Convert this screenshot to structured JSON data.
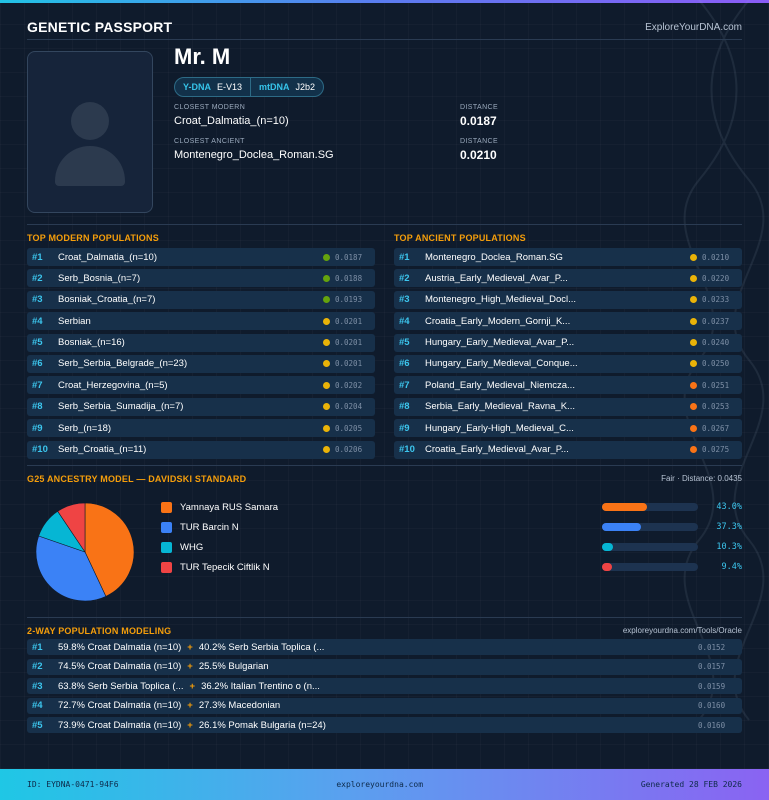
{
  "header": {
    "title": "GENETIC PASSPORT",
    "site": "ExploreYourDNA.com"
  },
  "profile": {
    "name": "Mr. M",
    "ydna_label": "Y-DNA",
    "ydna_value": "E-V13",
    "mtdna_label": "mtDNA",
    "mtdna_value": "J2b2",
    "closest_modern_label": "CLOSEST MODERN",
    "closest_modern": "Croat_Dalmatia_(n=10)",
    "modern_distance_label": "DISTANCE",
    "modern_distance": "0.0187",
    "closest_ancient_label": "CLOSEST ANCIENT",
    "closest_ancient": "Montenegro_Doclea_Roman.SG",
    "ancient_distance_label": "DISTANCE",
    "ancient_distance": "0.0210"
  },
  "modern": {
    "title": "TOP MODERN POPULATIONS",
    "rows": [
      {
        "rank": "#1",
        "name": "Croat_Dalmatia_(n=10)",
        "dist": "0.0187",
        "color": "#65a30d"
      },
      {
        "rank": "#2",
        "name": "Serb_Bosnia_(n=7)",
        "dist": "0.0188",
        "color": "#65a30d"
      },
      {
        "rank": "#3",
        "name": "Bosniak_Croatia_(n=7)",
        "dist": "0.0193",
        "color": "#65a30d"
      },
      {
        "rank": "#4",
        "name": "Serbian",
        "dist": "0.0201",
        "color": "#eab308"
      },
      {
        "rank": "#5",
        "name": "Bosniak_(n=16)",
        "dist": "0.0201",
        "color": "#eab308"
      },
      {
        "rank": "#6",
        "name": "Serb_Serbia_Belgrade_(n=23)",
        "dist": "0.0201",
        "color": "#eab308"
      },
      {
        "rank": "#7",
        "name": "Croat_Herzegovina_(n=5)",
        "dist": "0.0202",
        "color": "#eab308"
      },
      {
        "rank": "#8",
        "name": "Serb_Serbia_Sumadija_(n=7)",
        "dist": "0.0204",
        "color": "#eab308"
      },
      {
        "rank": "#9",
        "name": "Serb_(n=18)",
        "dist": "0.0205",
        "color": "#eab308"
      },
      {
        "rank": "#10",
        "name": "Serb_Croatia_(n=11)",
        "dist": "0.0206",
        "color": "#eab308"
      }
    ]
  },
  "ancient": {
    "title": "TOP ANCIENT POPULATIONS",
    "rows": [
      {
        "rank": "#1",
        "name": "Montenegro_Doclea_Roman.SG",
        "dist": "0.0210",
        "color": "#eab308"
      },
      {
        "rank": "#2",
        "name": "Austria_Early_Medieval_Avar_P...",
        "dist": "0.0220",
        "color": "#eab308"
      },
      {
        "rank": "#3",
        "name": "Montenegro_High_Medieval_Docl...",
        "dist": "0.0233",
        "color": "#eab308"
      },
      {
        "rank": "#4",
        "name": "Croatia_Early_Modern_Gornji_K...",
        "dist": "0.0237",
        "color": "#eab308"
      },
      {
        "rank": "#5",
        "name": "Hungary_Early_Medieval_Avar_P...",
        "dist": "0.0240",
        "color": "#eab308"
      },
      {
        "rank": "#6",
        "name": "Hungary_Early_Medieval_Conque...",
        "dist": "0.0250",
        "color": "#eab308"
      },
      {
        "rank": "#7",
        "name": "Poland_Early_Medieval_Niemcza...",
        "dist": "0.0251",
        "color": "#f97316"
      },
      {
        "rank": "#8",
        "name": "Serbia_Early_Medieval_Ravna_K...",
        "dist": "0.0253",
        "color": "#f97316"
      },
      {
        "rank": "#9",
        "name": "Hungary_Early-High_Medieval_C...",
        "dist": "0.0267",
        "color": "#f97316"
      },
      {
        "rank": "#10",
        "name": "Croatia_Early_Medieval_Avar_P...",
        "dist": "0.0275",
        "color": "#f97316"
      }
    ]
  },
  "ancestry": {
    "title": "G25 ANCESTRY MODEL — DAVIDSKI STANDARD",
    "fit": "Fair · Distance: 0.0435"
  },
  "chart_data": {
    "type": "pie",
    "title": "G25 ANCESTRY MODEL — DAVIDSKI STANDARD",
    "categories": [
      "Yamnaya RUS Samara",
      "TUR Barcin N",
      "WHG",
      "TUR Tepecik Ciftlik N"
    ],
    "values": [
      43.0,
      37.3,
      10.3,
      9.4
    ],
    "labels": [
      "43.0%",
      "37.3%",
      "10.3%",
      "9.4%"
    ],
    "colors": [
      "#f97316",
      "#3b82f6",
      "#06b6d4",
      "#ef4444"
    ]
  },
  "twoway": {
    "title": "2-WAY POPULATION MODELING",
    "link": "exploreyourdna.com/Tools/Oracle",
    "rows": [
      {
        "rank": "#1",
        "a": "59.8% Croat Dalmatia (n=10)",
        "b": "40.2% Serb Serbia Toplica (...",
        "dist": "0.0152"
      },
      {
        "rank": "#2",
        "a": "74.5% Croat Dalmatia (n=10)",
        "b": "25.5% Bulgarian",
        "dist": "0.0157"
      },
      {
        "rank": "#3",
        "a": "63.8% Serb Serbia Toplica (...",
        "b": "36.2% Italian Trentino o (n...",
        "dist": "0.0159"
      },
      {
        "rank": "#4",
        "a": "72.7% Croat Dalmatia (n=10)",
        "b": "27.3% Macedonian",
        "dist": "0.0160"
      },
      {
        "rank": "#5",
        "a": "73.9% Croat Dalmatia (n=10)",
        "b": "26.1% Pomak Bulgaria (n=24)",
        "dist": "0.0160"
      }
    ],
    "plus": "+"
  },
  "footer": {
    "id": "ID: EYDNA-0471-94F6",
    "site": "exploreyourdna.com",
    "generated": "Generated 28 FEB 2026"
  }
}
